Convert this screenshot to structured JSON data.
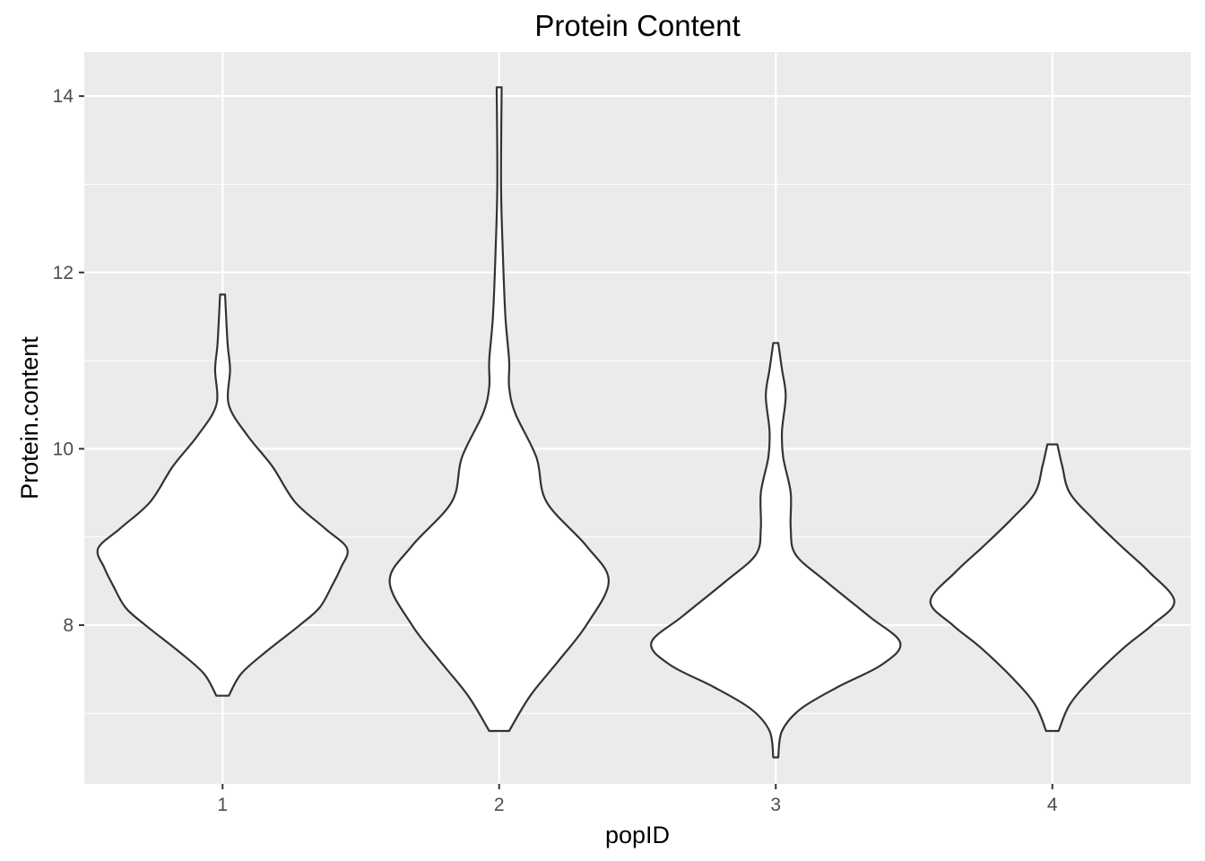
{
  "chart_data": {
    "type": "violin",
    "title": "Protein Content",
    "xlabel": "popID",
    "ylabel": "Protein.content",
    "categories": [
      "1",
      "2",
      "3",
      "4"
    ],
    "y_ticks": [
      "8",
      "10",
      "12",
      "14"
    ],
    "ylim": [
      6.2,
      14.5
    ],
    "grid": true,
    "colors": {
      "panel": "#ebebeb",
      "grid": "#ffffff",
      "outline": "#333333",
      "fill": "#ffffff"
    },
    "violins": [
      {
        "category": "1",
        "range": [
          7.2,
          11.75
        ],
        "profile": [
          [
            7.2,
            0.05
          ],
          [
            7.45,
            0.15
          ],
          [
            7.7,
            0.35
          ],
          [
            8.0,
            0.62
          ],
          [
            8.2,
            0.78
          ],
          [
            8.45,
            0.88
          ],
          [
            8.65,
            0.95
          ],
          [
            8.87,
            1.0
          ],
          [
            9.1,
            0.82
          ],
          [
            9.4,
            0.58
          ],
          [
            9.8,
            0.4
          ],
          [
            10.15,
            0.2
          ],
          [
            10.5,
            0.05
          ],
          [
            10.9,
            0.06
          ],
          [
            11.2,
            0.04
          ],
          [
            11.75,
            0.02
          ]
        ]
      },
      {
        "category": "2",
        "range": [
          6.8,
          14.1
        ],
        "profile": [
          [
            6.8,
            0.08
          ],
          [
            7.2,
            0.25
          ],
          [
            7.6,
            0.48
          ],
          [
            8.0,
            0.7
          ],
          [
            8.5,
            0.88
          ],
          [
            8.9,
            0.7
          ],
          [
            9.4,
            0.38
          ],
          [
            9.9,
            0.3
          ],
          [
            10.4,
            0.13
          ],
          [
            10.7,
            0.08
          ],
          [
            11.0,
            0.08
          ],
          [
            11.5,
            0.05
          ],
          [
            12.2,
            0.03
          ],
          [
            13.0,
            0.015
          ],
          [
            14.1,
            0.02
          ]
        ]
      },
      {
        "category": "3",
        "range": [
          6.5,
          11.2
        ],
        "profile": [
          [
            6.5,
            0.02
          ],
          [
            6.8,
            0.05
          ],
          [
            7.05,
            0.2
          ],
          [
            7.3,
            0.5
          ],
          [
            7.55,
            0.85
          ],
          [
            7.8,
            1.0
          ],
          [
            8.1,
            0.75
          ],
          [
            8.5,
            0.4
          ],
          [
            8.8,
            0.16
          ],
          [
            9.1,
            0.12
          ],
          [
            9.5,
            0.12
          ],
          [
            9.9,
            0.06
          ],
          [
            10.2,
            0.05
          ],
          [
            10.6,
            0.08
          ],
          [
            10.9,
            0.05
          ],
          [
            11.2,
            0.02
          ]
        ]
      },
      {
        "category": "4",
        "range": [
          6.8,
          10.05
        ],
        "profile": [
          [
            6.8,
            0.05
          ],
          [
            7.1,
            0.14
          ],
          [
            7.4,
            0.32
          ],
          [
            7.75,
            0.58
          ],
          [
            8.0,
            0.8
          ],
          [
            8.27,
            0.98
          ],
          [
            8.6,
            0.78
          ],
          [
            8.9,
            0.55
          ],
          [
            9.2,
            0.33
          ],
          [
            9.5,
            0.14
          ],
          [
            9.8,
            0.08
          ],
          [
            10.05,
            0.04
          ]
        ]
      }
    ]
  }
}
